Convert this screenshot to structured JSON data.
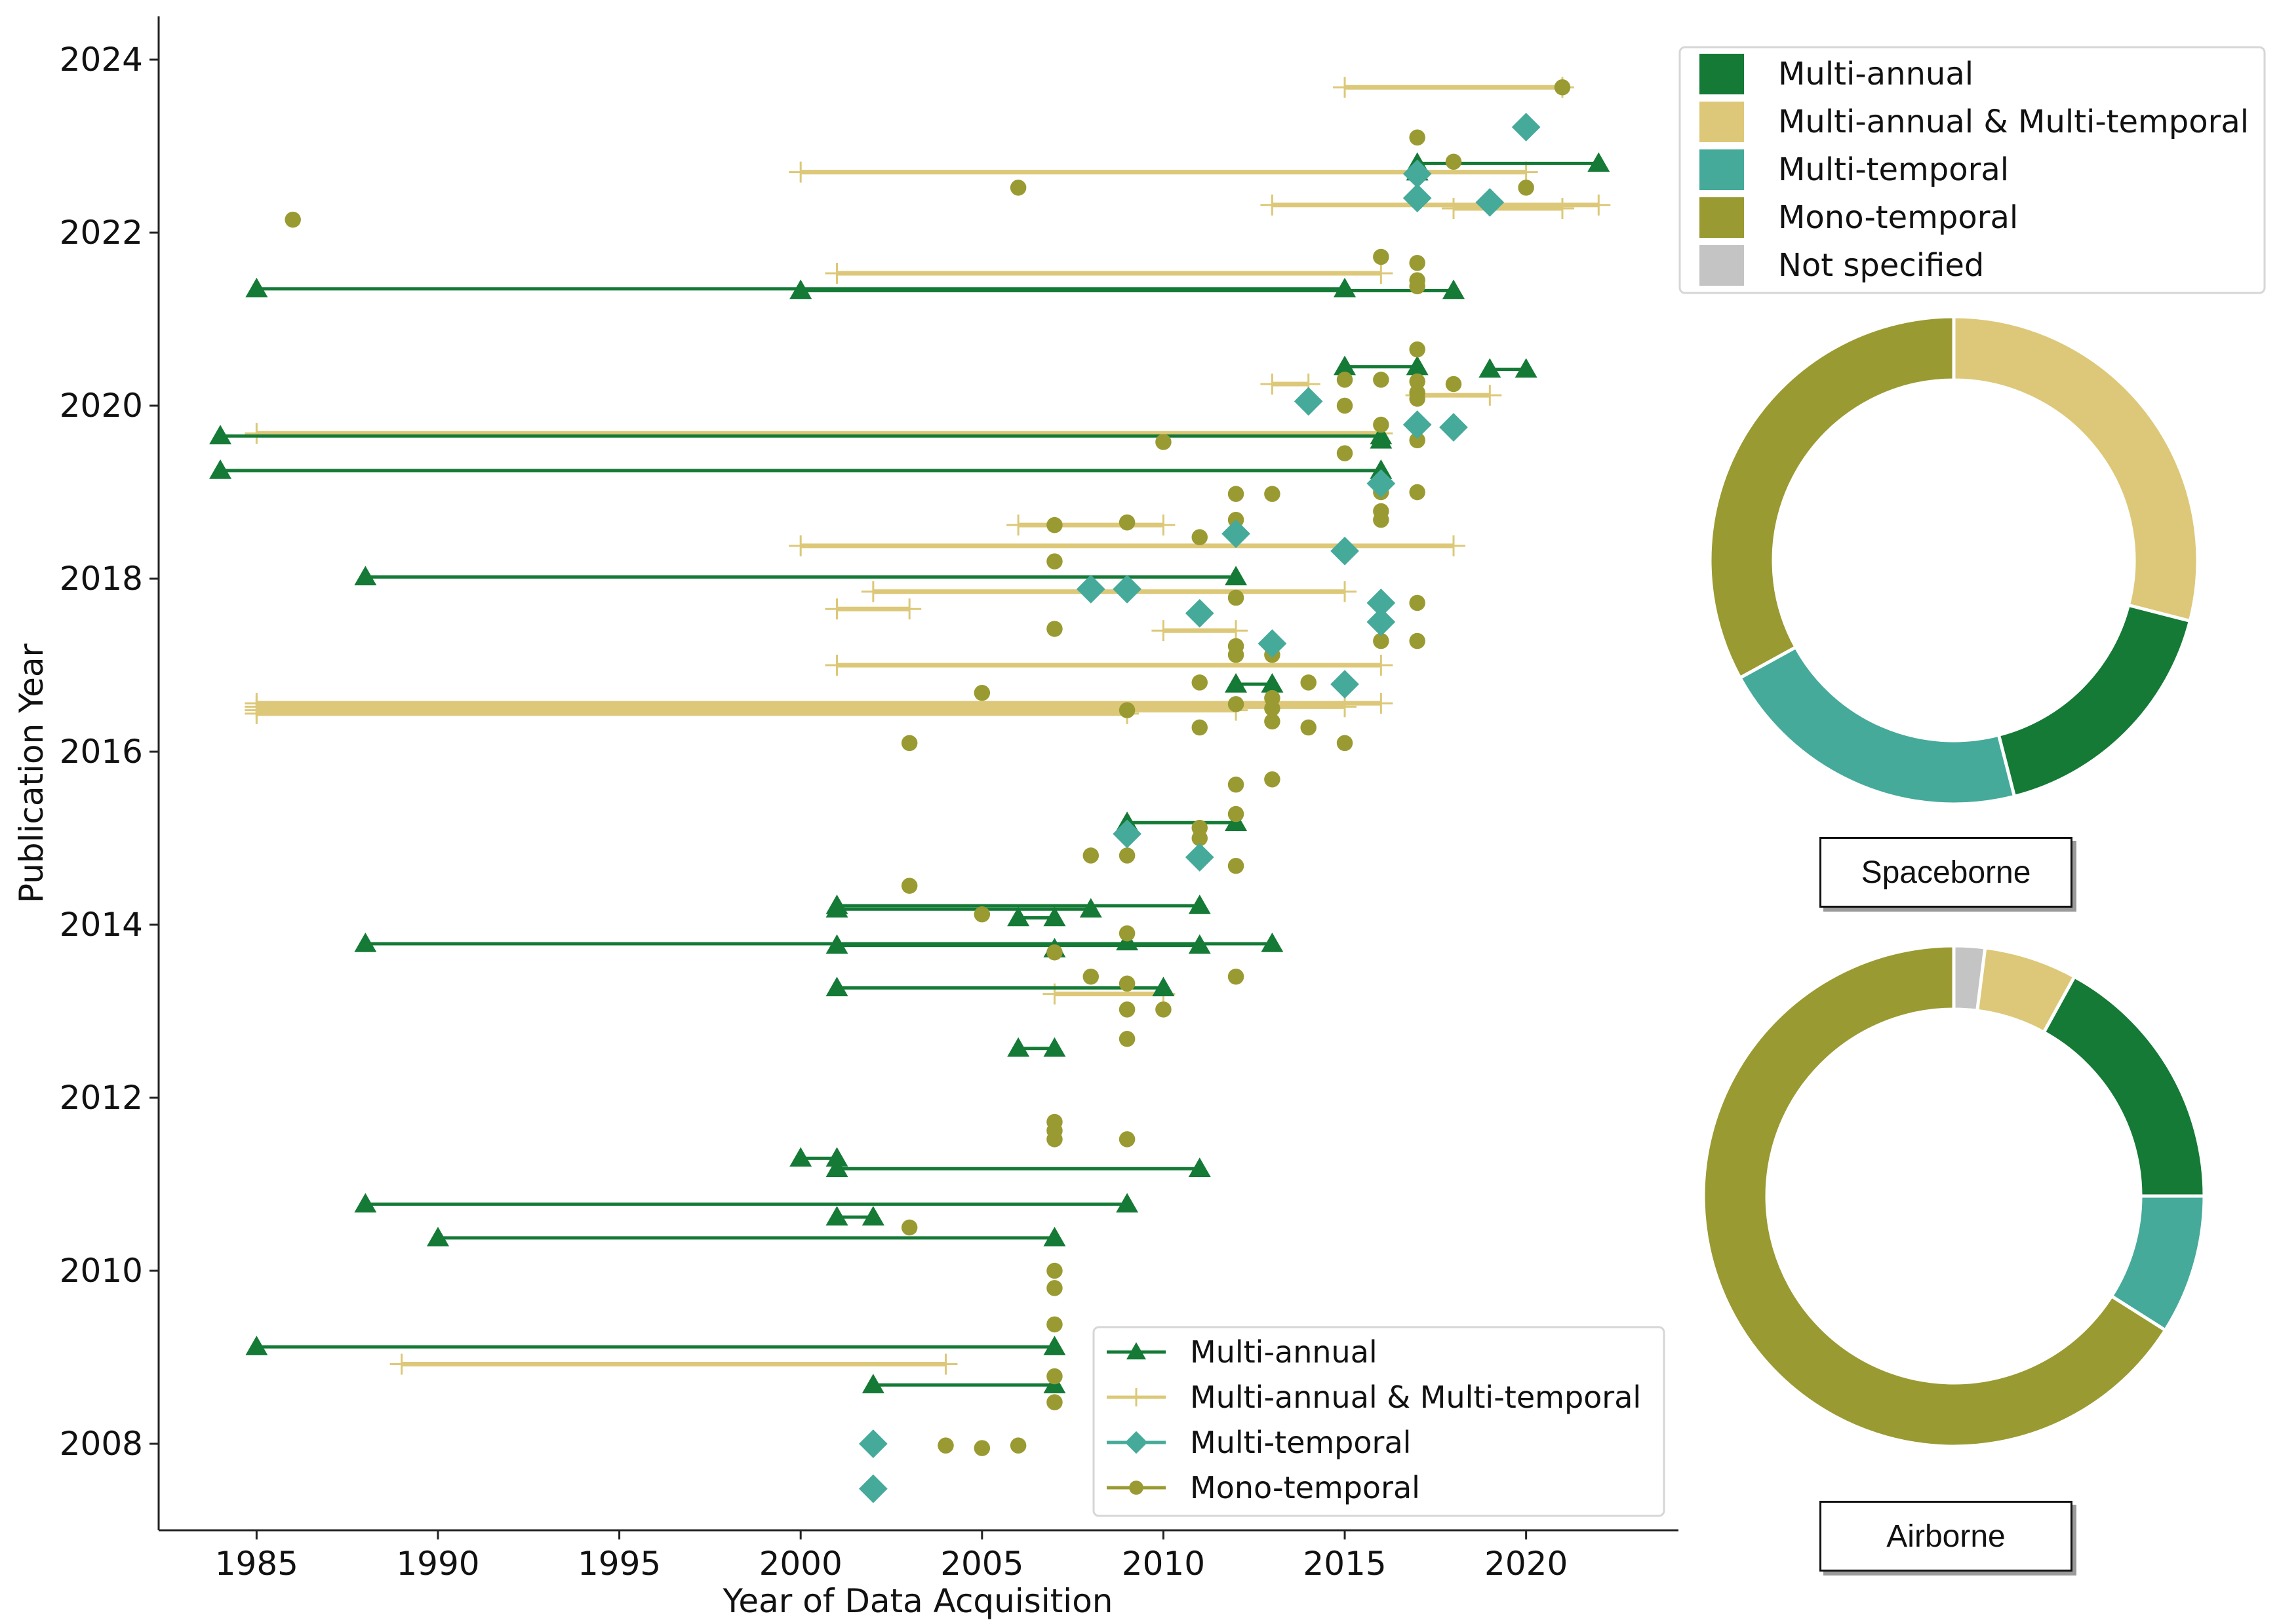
{
  "colors": {
    "multi_annual": "#147a36",
    "multi_annual_temporal": "#dcc878",
    "multi_temporal": "#45aa9a",
    "mono_temporal": "#9a9a32",
    "not_specified": "#c4c4c4"
  },
  "chart_data": [
    {
      "type": "scatter",
      "xlabel": "Year of Data Acquisition",
      "ylabel": "Publication Year",
      "xlim": [
        1982.3,
        2024.2
      ],
      "ylim": [
        2007.0,
        2024.5
      ],
      "xticks": [
        1985,
        1990,
        1995,
        2000,
        2005,
        2010,
        2015,
        2020
      ],
      "yticks": [
        2008,
        2010,
        2012,
        2014,
        2016,
        2018,
        2020,
        2022,
        2024
      ],
      "legend": {
        "position": "bottom-right",
        "entries": [
          "Multi-annual",
          "Multi-annual & Multi-temporal",
          "Multi-temporal",
          "Mono-temporal"
        ]
      },
      "series": [
        {
          "name": "Multi-annual",
          "marker": "triangle",
          "color_key": "multi_annual",
          "ranges": [
            {
              "pub": 2021.35,
              "x": [
                1985,
                2015
              ]
            },
            {
              "pub": 2021.33,
              "x": [
                2000,
                2018
              ]
            },
            {
              "pub": 2020.45,
              "x": [
                2015,
                2017
              ]
            },
            {
              "pub": 2020.42,
              "x": [
                2019,
                2020
              ]
            },
            {
              "pub": 2019.65,
              "x": [
                1984,
                2016
              ]
            },
            {
              "pub": 2019.25,
              "x": [
                1984,
                2016
              ]
            },
            {
              "pub": 2022.8,
              "x": [
                2017,
                2022
              ]
            },
            {
              "pub": 2018.02,
              "x": [
                1988,
                2012
              ]
            },
            {
              "pub": 2016.78,
              "x": [
                2012,
                2013
              ]
            },
            {
              "pub": 2015.18,
              "x": [
                2009,
                2012
              ]
            },
            {
              "pub": 2014.22,
              "x": [
                2001,
                2011
              ]
            },
            {
              "pub": 2014.18,
              "x": [
                2001,
                2008
              ]
            },
            {
              "pub": 2014.08,
              "x": [
                2006,
                2007
              ]
            },
            {
              "pub": 2013.78,
              "x": [
                1988,
                2013
              ]
            },
            {
              "pub": 2013.76,
              "x": [
                2001,
                2011
              ]
            },
            {
              "pub": 2013.27,
              "x": [
                2001,
                2010
              ]
            },
            {
              "pub": 2012.57,
              "x": [
                2006,
                2007
              ]
            },
            {
              "pub": 2011.3,
              "x": [
                2000,
                2001
              ]
            },
            {
              "pub": 2011.18,
              "x": [
                2001,
                2011
              ]
            },
            {
              "pub": 2010.77,
              "x": [
                1988,
                2009
              ]
            },
            {
              "pub": 2010.62,
              "x": [
                2001,
                2002
              ]
            },
            {
              "pub": 2010.38,
              "x": [
                1990,
                2007
              ]
            },
            {
              "pub": 2009.12,
              "x": [
                1985,
                2007
              ]
            },
            {
              "pub": 2008.68,
              "x": [
                2002,
                2007
              ]
            }
          ],
          "points": [
            {
              "x": 2017,
              "y": 2022.7
            },
            {
              "x": 2016,
              "y": 2019.6
            },
            {
              "x": 2009,
              "y": 2013.8
            },
            {
              "x": 2007,
              "y": 2013.72
            }
          ]
        },
        {
          "name": "Multi-annual & Multi-temporal",
          "marker": "plus",
          "color_key": "multi_annual_temporal",
          "ranges": [
            {
              "pub": 2023.68,
              "x": [
                2015,
                2021
              ]
            },
            {
              "pub": 2022.7,
              "x": [
                2000,
                2020
              ]
            },
            {
              "pub": 2022.32,
              "x": [
                2013,
                2022
              ]
            },
            {
              "pub": 2022.28,
              "x": [
                2018,
                2021
              ]
            },
            {
              "pub": 2021.53,
              "x": [
                2001,
                2016
              ]
            },
            {
              "pub": 2020.25,
              "x": [
                2013,
                2014
              ]
            },
            {
              "pub": 2020.12,
              "x": [
                2017,
                2019
              ]
            },
            {
              "pub": 2019.68,
              "x": [
                1985,
                2016
              ]
            },
            {
              "pub": 2018.62,
              "x": [
                2006,
                2010
              ]
            },
            {
              "pub": 2018.38,
              "x": [
                2000,
                2018
              ]
            },
            {
              "pub": 2017.85,
              "x": [
                2002,
                2015
              ]
            },
            {
              "pub": 2017.65,
              "x": [
                2001,
                2003
              ]
            },
            {
              "pub": 2017.4,
              "x": [
                2010,
                2012
              ]
            },
            {
              "pub": 2017.0,
              "x": [
                2001,
                2016
              ]
            },
            {
              "pub": 2016.56,
              "x": [
                1985,
                2016
              ]
            },
            {
              "pub": 2016.52,
              "x": [
                1985,
                2015
              ]
            },
            {
              "pub": 2016.48,
              "x": [
                1985,
                2012
              ]
            },
            {
              "pub": 2016.44,
              "x": [
                1985,
                2009
              ]
            },
            {
              "pub": 2013.2,
              "x": [
                2007,
                2010
              ]
            },
            {
              "pub": 2008.92,
              "x": [
                1989,
                2004
              ]
            }
          ],
          "points": []
        },
        {
          "name": "Multi-temporal",
          "marker": "diamond",
          "color_key": "multi_temporal",
          "ranges": [],
          "points": [
            {
              "x": 2020,
              "y": 2023.22
            },
            {
              "x": 2017,
              "y": 2022.68
            },
            {
              "x": 2017,
              "y": 2022.4
            },
            {
              "x": 2019,
              "y": 2022.35
            },
            {
              "x": 2014,
              "y": 2020.05
            },
            {
              "x": 2017,
              "y": 2019.78
            },
            {
              "x": 2018,
              "y": 2019.75
            },
            {
              "x": 2016,
              "y": 2019.1
            },
            {
              "x": 2012,
              "y": 2018.52
            },
            {
              "x": 2015,
              "y": 2018.32
            },
            {
              "x": 2008,
              "y": 2017.88
            },
            {
              "x": 2009,
              "y": 2017.88
            },
            {
              "x": 2016,
              "y": 2017.72
            },
            {
              "x": 2011,
              "y": 2017.6
            },
            {
              "x": 2016,
              "y": 2017.5
            },
            {
              "x": 2013,
              "y": 2017.25
            },
            {
              "x": 2015,
              "y": 2016.78
            },
            {
              "x": 2009,
              "y": 2015.05
            },
            {
              "x": 2011,
              "y": 2014.78
            },
            {
              "x": 2002,
              "y": 2008.0
            },
            {
              "x": 2002,
              "y": 2007.48
            }
          ]
        },
        {
          "name": "Mono-temporal",
          "marker": "circle",
          "color_key": "mono_temporal",
          "ranges": [],
          "points": [
            {
              "x": 2021,
              "y": 2023.68
            },
            {
              "x": 2017,
              "y": 2023.1
            },
            {
              "x": 2018,
              "y": 2022.82
            },
            {
              "x": 2006,
              "y": 2022.52
            },
            {
              "x": 2020,
              "y": 2022.52
            },
            {
              "x": 1986,
              "y": 2022.15
            },
            {
              "x": 2016,
              "y": 2021.72
            },
            {
              "x": 2017,
              "y": 2021.65
            },
            {
              "x": 2017,
              "y": 2021.45
            },
            {
              "x": 2017,
              "y": 2021.38
            },
            {
              "x": 2017,
              "y": 2020.65
            },
            {
              "x": 2015,
              "y": 2020.3
            },
            {
              "x": 2016,
              "y": 2020.3
            },
            {
              "x": 2017,
              "y": 2020.28
            },
            {
              "x": 2018,
              "y": 2020.25
            },
            {
              "x": 2017,
              "y": 2020.15
            },
            {
              "x": 2017,
              "y": 2020.08
            },
            {
              "x": 2015,
              "y": 2020.0
            },
            {
              "x": 2016,
              "y": 2019.78
            },
            {
              "x": 2017,
              "y": 2019.6
            },
            {
              "x": 2010,
              "y": 2019.58
            },
            {
              "x": 2015,
              "y": 2019.45
            },
            {
              "x": 2016,
              "y": 2019.0
            },
            {
              "x": 2017,
              "y": 2019.0
            },
            {
              "x": 2012,
              "y": 2018.98
            },
            {
              "x": 2013,
              "y": 2018.98
            },
            {
              "x": 2016,
              "y": 2018.78
            },
            {
              "x": 2016,
              "y": 2018.68
            },
            {
              "x": 2012,
              "y": 2018.68
            },
            {
              "x": 2007,
              "y": 2018.62
            },
            {
              "x": 2009,
              "y": 2018.65
            },
            {
              "x": 2011,
              "y": 2018.48
            },
            {
              "x": 2007,
              "y": 2018.2
            },
            {
              "x": 2012,
              "y": 2017.78
            },
            {
              "x": 2017,
              "y": 2017.72
            },
            {
              "x": 2007,
              "y": 2017.42
            },
            {
              "x": 2016,
              "y": 2017.28
            },
            {
              "x": 2017,
              "y": 2017.28
            },
            {
              "x": 2012,
              "y": 2017.22
            },
            {
              "x": 2012,
              "y": 2017.12
            },
            {
              "x": 2013,
              "y": 2017.12
            },
            {
              "x": 2011,
              "y": 2016.8
            },
            {
              "x": 2014,
              "y": 2016.8
            },
            {
              "x": 2005,
              "y": 2016.68
            },
            {
              "x": 2013,
              "y": 2016.62
            },
            {
              "x": 2012,
              "y": 2016.55
            },
            {
              "x": 2013,
              "y": 2016.5
            },
            {
              "x": 2009,
              "y": 2016.48
            },
            {
              "x": 2013,
              "y": 2016.35
            },
            {
              "x": 2011,
              "y": 2016.28
            },
            {
              "x": 2014,
              "y": 2016.28
            },
            {
              "x": 2003,
              "y": 2016.1
            },
            {
              "x": 2015,
              "y": 2016.1
            },
            {
              "x": 2013,
              "y": 2015.68
            },
            {
              "x": 2012,
              "y": 2015.62
            },
            {
              "x": 2012,
              "y": 2015.28
            },
            {
              "x": 2011,
              "y": 2015.12
            },
            {
              "x": 2011,
              "y": 2015.0
            },
            {
              "x": 2008,
              "y": 2014.8
            },
            {
              "x": 2009,
              "y": 2014.8
            },
            {
              "x": 2012,
              "y": 2014.68
            },
            {
              "x": 2003,
              "y": 2014.45
            },
            {
              "x": 2005,
              "y": 2014.12
            },
            {
              "x": 2009,
              "y": 2013.9
            },
            {
              "x": 2007,
              "y": 2013.68
            },
            {
              "x": 2008,
              "y": 2013.4
            },
            {
              "x": 2012,
              "y": 2013.4
            },
            {
              "x": 2009,
              "y": 2013.32
            },
            {
              "x": 2009,
              "y": 2013.02
            },
            {
              "x": 2010,
              "y": 2013.02
            },
            {
              "x": 2009,
              "y": 2012.68
            },
            {
              "x": 2007,
              "y": 2011.72
            },
            {
              "x": 2007,
              "y": 2011.62
            },
            {
              "x": 2007,
              "y": 2011.52
            },
            {
              "x": 2009,
              "y": 2011.52
            },
            {
              "x": 2003,
              "y": 2010.5
            },
            {
              "x": 2007,
              "y": 2010.0
            },
            {
              "x": 2007,
              "y": 2009.8
            },
            {
              "x": 2007,
              "y": 2009.38
            },
            {
              "x": 2007,
              "y": 2008.78
            },
            {
              "x": 2007,
              "y": 2008.48
            },
            {
              "x": 2004,
              "y": 2007.98
            },
            {
              "x": 2005,
              "y": 2007.95
            },
            {
              "x": 2006,
              "y": 2007.98
            }
          ]
        }
      ]
    },
    {
      "type": "pie",
      "title": "Spaceborne",
      "donut": true,
      "categories": [
        "Multi-annual & Multi-temporal",
        "Multi-annual",
        "Multi-temporal",
        "Mono-temporal"
      ],
      "values": [
        0.29,
        0.17,
        0.21,
        0.33
      ],
      "color_keys": [
        "multi_annual_temporal",
        "multi_annual",
        "multi_temporal",
        "mono_temporal"
      ]
    },
    {
      "type": "pie",
      "title": "Airborne",
      "donut": true,
      "categories": [
        "Not specified",
        "Multi-annual & Multi-temporal",
        "Multi-annual",
        "Multi-temporal",
        "Mono-temporal"
      ],
      "values": [
        0.02,
        0.06,
        0.17,
        0.09,
        0.66
      ],
      "color_keys": [
        "not_specified",
        "multi_annual_temporal",
        "multi_annual",
        "multi_temporal",
        "mono_temporal"
      ]
    }
  ],
  "pie_legend": {
    "entries": [
      {
        "label": "Multi-annual",
        "color_key": "multi_annual"
      },
      {
        "label": "Multi-annual & Multi-temporal",
        "color_key": "multi_annual_temporal"
      },
      {
        "label": "Multi-temporal",
        "color_key": "multi_temporal"
      },
      {
        "label": "Mono-temporal",
        "color_key": "mono_temporal"
      },
      {
        "label": "Not specified",
        "color_key": "not_specified"
      }
    ]
  }
}
